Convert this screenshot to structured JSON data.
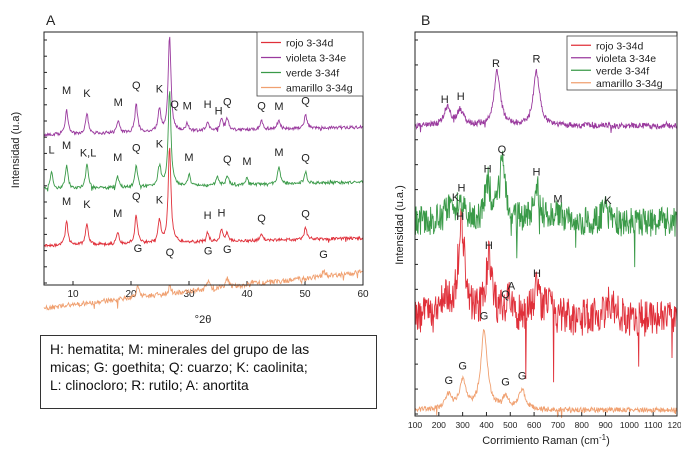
{
  "chart_data": [
    {
      "panel": "A",
      "type": "line",
      "ylabel": "Intensidad (u.a)",
      "xlabel": "°2θ",
      "xlim": [
        5,
        60
      ],
      "xticks": [
        10,
        20,
        30,
        40,
        50,
        60
      ],
      "legend_position": "top-right",
      "series": [
        {
          "name": "rojo 3-34d",
          "color": "#e0303a",
          "peaks": [
            [
              8.9,
              0.25
            ],
            [
              12.4,
              0.22
            ],
            [
              17.7,
              0.12
            ],
            [
              20.9,
              0.3
            ],
            [
              24.9,
              0.24
            ],
            [
              26.65,
              1.0
            ],
            [
              33.2,
              0.1
            ],
            [
              35.6,
              0.12
            ],
            [
              36.6,
              0.09
            ],
            [
              42.5,
              0.07
            ],
            [
              50.1,
              0.12
            ]
          ]
        },
        {
          "name": "violeta 3-34e",
          "color": "#9a3a9e",
          "peaks": [
            [
              8.9,
              0.25
            ],
            [
              12.4,
              0.22
            ],
            [
              17.8,
              0.12
            ],
            [
              20.9,
              0.3
            ],
            [
              24.9,
              0.24
            ],
            [
              26.65,
              1.0
            ],
            [
              29.7,
              0.08
            ],
            [
              33.2,
              0.1
            ],
            [
              35.6,
              0.12
            ],
            [
              36.6,
              0.12
            ],
            [
              42.5,
              0.09
            ],
            [
              45.5,
              0.08
            ],
            [
              50.1,
              0.14
            ]
          ]
        },
        {
          "name": "verde 3-34f",
          "color": "#3a9a48",
          "peaks": [
            [
              6.3,
              0.2
            ],
            [
              8.9,
              0.25
            ],
            [
              12.4,
              0.26
            ],
            [
              17.7,
              0.12
            ],
            [
              20.9,
              0.22
            ],
            [
              24.9,
              0.24
            ],
            [
              26.65,
              1.0
            ],
            [
              30.0,
              0.12
            ],
            [
              34.9,
              0.1
            ],
            [
              36.6,
              0.1
            ],
            [
              40.0,
              0.08
            ],
            [
              45.5,
              0.18
            ],
            [
              50.1,
              0.12
            ]
          ]
        },
        {
          "name": "amarillo 3-34g",
          "color": "#f0a070",
          "peaks": [
            [
              21.2,
              0.16
            ],
            [
              26.7,
              0.1
            ],
            [
              33.3,
              0.12
            ],
            [
              36.6,
              0.14
            ],
            [
              41.2,
              0.06
            ],
            [
              53.2,
              0.07
            ]
          ]
        }
      ],
      "peak_labels": [
        {
          "series": "violeta 3-34e",
          "items": [
            {
              "t": "M",
              "x": 8.9
            },
            {
              "t": "K",
              "x": 12.4
            },
            {
              "t": "M",
              "x": 17.8
            },
            {
              "t": "Q",
              "x": 20.9
            },
            {
              "t": "K",
              "x": 24.9
            },
            {
              "t": "Q",
              "x": 27.5
            },
            {
              "t": "M",
              "x": 29.7
            },
            {
              "t": "H",
              "x": 33.2
            },
            {
              "t": "H",
              "x": 35.1
            },
            {
              "t": "Q",
              "x": 36.6
            },
            {
              "t": "Q",
              "x": 42.5
            },
            {
              "t": "M",
              "x": 45.5
            },
            {
              "t": "Q",
              "x": 50.1
            }
          ]
        },
        {
          "series": "verde 3-34f",
          "items": [
            {
              "t": "L",
              "x": 6.3
            },
            {
              "t": "M",
              "x": 8.9
            },
            {
              "t": "K,L",
              "x": 12.6
            },
            {
              "t": "M",
              "x": 17.7
            },
            {
              "t": "Q",
              "x": 20.9
            },
            {
              "t": "K",
              "x": 24.9
            },
            {
              "t": "M",
              "x": 30.0
            },
            {
              "t": "Q",
              "x": 36.6
            },
            {
              "t": "M",
              "x": 40.0
            },
            {
              "t": "M",
              "x": 45.5
            },
            {
              "t": "Q",
              "x": 50.1
            }
          ]
        },
        {
          "series": "rojo 3-34d",
          "items": [
            {
              "t": "M",
              "x": 8.9
            },
            {
              "t": "K",
              "x": 12.4
            },
            {
              "t": "M",
              "x": 17.7
            },
            {
              "t": "Q",
              "x": 20.9
            },
            {
              "t": "K",
              "x": 24.9
            },
            {
              "t": "H",
              "x": 33.2
            },
            {
              "t": "H",
              "x": 35.6
            },
            {
              "t": "Q",
              "x": 42.5
            },
            {
              "t": "Q",
              "x": 50.1
            }
          ]
        },
        {
          "series": "amarillo 3-34g",
          "items": [
            {
              "t": "G",
              "x": 21.2
            },
            {
              "t": "Q",
              "x": 26.7
            },
            {
              "t": "G",
              "x": 33.3
            },
            {
              "t": "G",
              "x": 36.6
            },
            {
              "t": "G",
              "x": 53.2
            }
          ]
        }
      ]
    },
    {
      "panel": "B",
      "type": "line",
      "ylabel": "Intensidad (u.a.)",
      "xlabel": "Corrimiento Raman (cm",
      "xlabel_sup": "-1",
      "xlabel_end": ")",
      "xlim": [
        100,
        1200
      ],
      "xticks": [
        100,
        200,
        300,
        400,
        500,
        600,
        700,
        800,
        900,
        1000,
        1100,
        1200
      ],
      "legend_position": "top-right",
      "series": [
        {
          "name": "rojo 3-34d",
          "color": "#e0303a",
          "peaks": [
            [
              225,
              0.35
            ],
            [
              290,
              0.9
            ],
            [
              300,
              0.75
            ],
            [
              410,
              0.95
            ],
            [
              500,
              0.3
            ],
            [
              610,
              0.5
            ],
            [
              660,
              0.2
            ],
            [
              920,
              0.3
            ]
          ]
        },
        {
          "name": "violeta 3-34e",
          "color": "#9a3a9e",
          "peaks": [
            [
              235,
              0.3
            ],
            [
              290,
              0.25
            ],
            [
              445,
              0.9
            ],
            [
              610,
              0.9
            ]
          ]
        },
        {
          "name": "verde 3-34f",
          "color": "#3a9a48",
          "peaks": [
            [
              240,
              0.2
            ],
            [
              290,
              0.35
            ],
            [
              405,
              0.6
            ],
            [
              465,
              0.95
            ],
            [
              610,
              0.6
            ],
            [
              700,
              0.15
            ],
            [
              900,
              0.2
            ]
          ]
        },
        {
          "name": "amarillo 3-34g",
          "color": "#f0a070",
          "peaks": [
            [
              240,
              0.18
            ],
            [
              300,
              0.35
            ],
            [
              390,
              1.0
            ],
            [
              480,
              0.15
            ],
            [
              550,
              0.25
            ]
          ]
        }
      ],
      "peak_labels": [
        {
          "series": "violeta 3-34e",
          "items": [
            {
              "t": "H",
              "x": 225
            },
            {
              "t": "H",
              "x": 292
            },
            {
              "t": "R",
              "x": 440
            },
            {
              "t": "R",
              "x": 610
            }
          ]
        },
        {
          "series": "verde 3-34f",
          "items": [
            {
              "t": "K",
              "x": 270
            },
            {
              "t": "H",
              "x": 295
            },
            {
              "t": "H",
              "x": 405
            },
            {
              "t": "Q",
              "x": 465
            },
            {
              "t": "H",
              "x": 610
            },
            {
              "t": "M",
              "x": 700
            },
            {
              "t": "K",
              "x": 910
            }
          ]
        },
        {
          "series": "rojo 3-34d",
          "items": [
            {
              "t": "H",
              "x": 290
            },
            {
              "t": "H",
              "x": 410
            },
            {
              "t": "Q",
              "x": 480
            },
            {
              "t": "A",
              "x": 505
            },
            {
              "t": "H",
              "x": 612
            }
          ]
        },
        {
          "series": "amarillo 3-34g",
          "items": [
            {
              "t": "G",
              "x": 390
            },
            {
              "t": "G",
              "x": 300
            },
            {
              "t": "G",
              "x": 242
            },
            {
              "t": "G",
              "x": 480
            },
            {
              "t": "G",
              "x": 550
            }
          ]
        }
      ]
    }
  ],
  "labels": {
    "panel_a": "A",
    "panel_b": "B"
  },
  "note": {
    "lines": [
      "H: hematita; M: minerales del grupo de las",
      "micas; G: goethita; Q: cuarzo; K: caolinita;",
      "L: clinocloro; R: rutilo; A: anortita"
    ]
  }
}
